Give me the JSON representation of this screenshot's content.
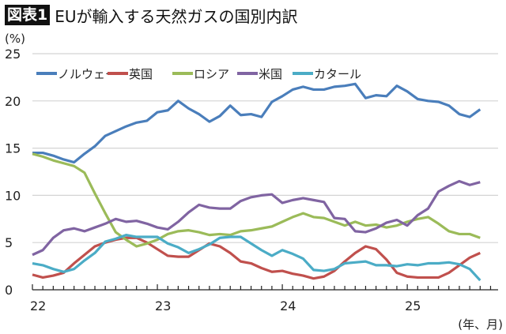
{
  "header": {
    "badge": "図表1",
    "title": "EUが輸入する天然ガスの国別内訳"
  },
  "chart_data": {
    "type": "line",
    "title": "EUが輸入する天然ガスの国別内訳",
    "ylabel": "(%)",
    "xlabel": "(年、月)",
    "ylim": [
      0,
      25
    ],
    "yticks": [
      0,
      5,
      10,
      15,
      20,
      25
    ],
    "xticks": [
      "22",
      "23",
      "24",
      "25"
    ],
    "grid": true,
    "legend": "top",
    "x": [
      "2022-01",
      "2022-02",
      "2022-03",
      "2022-04",
      "2022-05",
      "2022-06",
      "2022-07",
      "2022-08",
      "2022-09",
      "2022-10",
      "2022-11",
      "2022-12",
      "2023-01",
      "2023-02",
      "2023-03",
      "2023-04",
      "2023-05",
      "2023-06",
      "2023-07",
      "2023-08",
      "2023-09",
      "2023-10",
      "2023-11",
      "2023-12",
      "2024-01",
      "2024-02",
      "2024-03",
      "2024-04",
      "2024-05",
      "2024-06",
      "2024-07",
      "2024-08",
      "2024-09",
      "2024-10",
      "2024-11",
      "2024-12",
      "2025-01",
      "2025-02",
      "2025-03",
      "2025-04",
      "2025-05",
      "2025-06",
      "2025-07",
      "2025-08"
    ],
    "series": [
      {
        "name": "ノルウェー",
        "color": "#4a7ebb",
        "values": [
          14.5,
          14.5,
          14.2,
          13.8,
          13.5,
          14.4,
          15.2,
          16.3,
          16.8,
          17.3,
          17.7,
          17.9,
          18.8,
          19.0,
          20.0,
          19.2,
          18.6,
          17.8,
          18.4,
          19.5,
          18.5,
          18.6,
          18.3,
          19.9,
          20.5,
          21.2,
          21.5,
          21.2,
          21.2,
          21.5,
          21.6,
          21.8,
          20.3,
          20.6,
          20.5,
          21.6,
          21.0,
          20.2,
          20.0,
          19.9,
          19.5,
          18.6,
          18.3,
          19.1
        ]
      },
      {
        "name": "英国",
        "color": "#c0504d",
        "values": [
          1.6,
          1.3,
          1.5,
          1.8,
          2.8,
          3.7,
          4.6,
          5.0,
          5.3,
          5.5,
          5.5,
          5.0,
          4.3,
          3.6,
          3.5,
          3.5,
          4.2,
          4.9,
          4.6,
          3.9,
          3.0,
          2.8,
          2.3,
          1.9,
          2.0,
          1.7,
          1.5,
          1.2,
          1.4,
          2.0,
          3.0,
          3.9,
          4.6,
          4.3,
          3.2,
          1.8,
          1.4,
          1.3,
          1.3,
          1.3,
          1.8,
          2.6,
          3.4,
          3.9
        ]
      },
      {
        "name": "ロシア",
        "color": "#9bbb59",
        "values": [
          14.4,
          14.1,
          13.7,
          13.4,
          13.1,
          12.4,
          10.2,
          8.1,
          6.1,
          5.3,
          4.6,
          4.9,
          5.3,
          5.9,
          6.2,
          6.3,
          6.1,
          5.8,
          5.9,
          5.8,
          6.2,
          6.3,
          6.5,
          6.7,
          7.2,
          7.7,
          8.1,
          7.7,
          7.6,
          7.2,
          6.8,
          7.2,
          6.8,
          6.9,
          6.6,
          6.8,
          7.2,
          7.5,
          7.7,
          7.0,
          6.2,
          5.9,
          5.9,
          5.5
        ]
      },
      {
        "name": "米国",
        "color": "#8064a2",
        "values": [
          3.7,
          4.2,
          5.5,
          6.3,
          6.5,
          6.2,
          6.6,
          7.0,
          7.5,
          7.2,
          7.3,
          7.0,
          6.6,
          6.4,
          7.2,
          8.2,
          9.0,
          8.7,
          8.6,
          8.6,
          9.4,
          9.8,
          10.0,
          10.1,
          9.2,
          9.5,
          9.7,
          9.5,
          9.3,
          7.6,
          7.5,
          6.2,
          6.1,
          6.5,
          7.1,
          7.4,
          6.8,
          7.9,
          8.6,
          10.4,
          11.0,
          11.5,
          11.1,
          11.4
        ]
      },
      {
        "name": "カタール",
        "color": "#4bacc6",
        "values": [
          2.8,
          2.6,
          2.2,
          1.9,
          2.2,
          3.1,
          3.9,
          5.1,
          5.4,
          5.8,
          5.6,
          5.6,
          5.6,
          4.9,
          4.5,
          3.9,
          4.3,
          4.8,
          5.5,
          5.6,
          5.6,
          4.9,
          4.2,
          3.6,
          4.2,
          3.8,
          3.3,
          2.1,
          2.0,
          2.2,
          2.8,
          2.9,
          3.0,
          2.6,
          2.6,
          2.5,
          2.7,
          2.6,
          2.8,
          2.8,
          2.9,
          2.7,
          2.2,
          1.0
        ]
      }
    ]
  }
}
